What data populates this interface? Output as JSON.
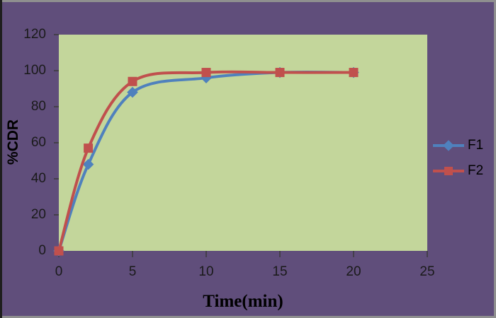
{
  "chart_data": {
    "type": "line",
    "title": "",
    "xlabel": "Time(min)",
    "ylabel": "%CDR",
    "x": [
      0,
      2,
      5,
      10,
      15,
      20
    ],
    "series": [
      {
        "name": "F1",
        "color": "#4F81BD",
        "marker": "diamond",
        "values": [
          0,
          48,
          88,
          96,
          99,
          99
        ]
      },
      {
        "name": "F2",
        "color": "#C0504D",
        "marker": "square",
        "values": [
          0,
          57,
          94,
          99,
          99,
          99
        ]
      }
    ],
    "xlim": [
      0,
      25
    ],
    "ylim": [
      0,
      120
    ],
    "x_ticks": [
      0,
      5,
      10,
      15,
      20,
      25
    ],
    "y_ticks": [
      0,
      20,
      40,
      60,
      80,
      100,
      120
    ],
    "grid": false,
    "smooth_lines": true,
    "legend_position": "right"
  },
  "colors": {
    "chart_bg": "#604E7B",
    "plot_bg": "#C3D69B",
    "tick": "#3A3A3A",
    "label_text": "#1A1A1A",
    "frame_border": "#8F8F8F",
    "frame_border_left": "#1E1E1E"
  },
  "legend": {
    "items": [
      {
        "label": "F1"
      },
      {
        "label": "F2"
      }
    ]
  }
}
